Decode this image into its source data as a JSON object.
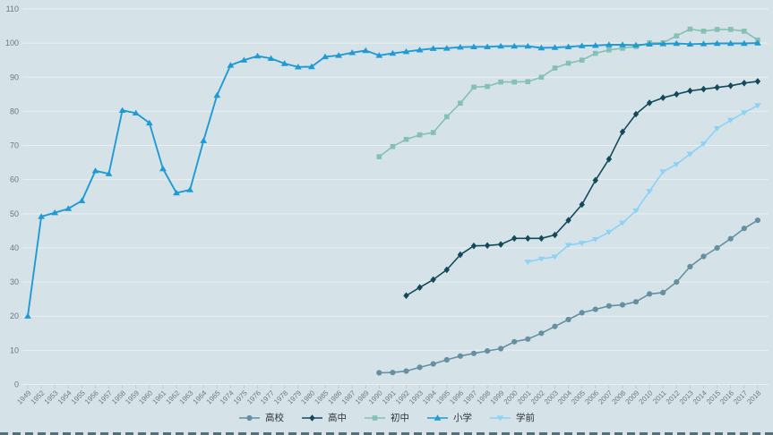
{
  "chart_data": {
    "type": "line",
    "title": "",
    "xlabel": "",
    "ylabel": "",
    "ylim": [
      0,
      110
    ],
    "y_tick_step": 10,
    "y_tick_labels": [
      "0",
      "10",
      "20",
      "30",
      "40",
      "50",
      "60",
      "70",
      "80",
      "90",
      "100",
      "110"
    ],
    "grid": true,
    "legend_position": "bottom-center",
    "background_color": "#d5e3e9",
    "gridline_color": "#e9f0f3",
    "tick_color": "#b9cbd3",
    "axis_label_color": "#6b7880",
    "legend_text_color": "#2f3337",
    "categories": [
      "1949",
      "1952",
      "1953",
      "1954",
      "1955",
      "1956",
      "1957",
      "1958",
      "1959",
      "1960",
      "1961",
      "1962",
      "1963",
      "1964",
      "1965",
      "1974",
      "1975",
      "1976",
      "1977",
      "1978",
      "1979",
      "1980",
      "1985",
      "1986",
      "1987",
      "1989",
      "1990",
      "1991",
      "1992",
      "1993",
      "1994",
      "1995",
      "1996",
      "1997",
      "1998",
      "1999",
      "2000",
      "2001",
      "2002",
      "2003",
      "2004",
      "2005",
      "2006",
      "2007",
      "2008",
      "2009",
      "2010",
      "2011",
      "2012",
      "2013",
      "2014",
      "2015",
      "2016",
      "2017",
      "2018"
    ],
    "series": [
      {
        "name": "高校",
        "key": "higher-education",
        "color": "#6590a2",
        "marker": "circle",
        "line_width": 1.6,
        "values": [
          null,
          null,
          null,
          null,
          null,
          null,
          null,
          null,
          null,
          null,
          null,
          null,
          null,
          null,
          null,
          null,
          null,
          null,
          null,
          null,
          null,
          null,
          null,
          null,
          null,
          null,
          3.4,
          3.5,
          3.9,
          5,
          6,
          7.2,
          8.3,
          9.1,
          9.8,
          10.5,
          12.5,
          13.3,
          15,
          17,
          19,
          21,
          22,
          23,
          23.3,
          24.2,
          26.5,
          26.9,
          30,
          34.5,
          37.5,
          40,
          42.7,
          45.7,
          48.1
        ]
      },
      {
        "name": "高中",
        "key": "senior-secondary",
        "color": "#124a5c",
        "marker": "diamond",
        "line_width": 1.6,
        "values": [
          null,
          null,
          null,
          null,
          null,
          null,
          null,
          null,
          null,
          null,
          null,
          null,
          null,
          null,
          null,
          null,
          null,
          null,
          null,
          null,
          null,
          null,
          null,
          null,
          null,
          null,
          null,
          null,
          26,
          28.4,
          30.7,
          33.6,
          38,
          40.6,
          40.7,
          41,
          42.8,
          42.8,
          42.8,
          43.8,
          48.1,
          52.7,
          59.8,
          66,
          74,
          79.2,
          82.5,
          84,
          85,
          86,
          86.5,
          87,
          87.5,
          88.3,
          88.8
        ]
      },
      {
        "name": "初中",
        "key": "junior-secondary",
        "color": "#85c0b4",
        "marker": "square",
        "line_width": 1.6,
        "values": [
          null,
          null,
          null,
          null,
          null,
          null,
          null,
          null,
          null,
          null,
          null,
          null,
          null,
          null,
          null,
          null,
          null,
          null,
          null,
          null,
          null,
          null,
          null,
          null,
          null,
          null,
          66.7,
          69.7,
          71.8,
          73.1,
          73.8,
          78.4,
          82.4,
          87.1,
          87.3,
          88.6,
          88.6,
          88.7,
          90,
          92.7,
          94.1,
          95,
          97,
          98,
          98.5,
          99,
          100.1,
          100.1,
          102.1,
          104.1,
          103.5,
          104,
          104,
          103.5,
          100.9
        ]
      },
      {
        "name": "小学",
        "key": "primary",
        "color": "#1f9ad3",
        "marker": "triangle",
        "line_width": 1.9,
        "values": [
          20,
          49.2,
          50.3,
          51.5,
          53.8,
          62.6,
          61.7,
          80.3,
          79.5,
          76.6,
          63.2,
          56.1,
          57,
          71.4,
          84.7,
          93.5,
          95,
          96.2,
          95.5,
          94,
          93,
          93.1,
          96,
          96.4,
          97.2,
          97.8,
          96.4,
          97,
          97.5,
          98,
          98.4,
          98.5,
          98.8,
          98.9,
          98.9,
          99.1,
          99.1,
          99.1,
          98.6,
          98.7,
          98.9,
          99.2,
          99.3,
          99.5,
          99.5,
          99.4,
          99.7,
          99.8,
          99.9,
          99.7,
          99.8,
          99.9,
          99.9,
          99.9,
          100
        ]
      },
      {
        "name": "学前",
        "key": "preschool",
        "color": "#8bd2f4",
        "marker": "triangle-down",
        "line_width": 1.6,
        "values": [
          null,
          null,
          null,
          null,
          null,
          null,
          null,
          null,
          null,
          null,
          null,
          null,
          null,
          null,
          null,
          null,
          null,
          null,
          null,
          null,
          null,
          null,
          null,
          null,
          null,
          null,
          null,
          null,
          null,
          null,
          null,
          null,
          null,
          null,
          null,
          null,
          null,
          35.9,
          36.8,
          37.4,
          40.8,
          41.4,
          42.5,
          44.6,
          47.3,
          50.9,
          56.6,
          62.3,
          64.5,
          67.5,
          70.5,
          75,
          77.4,
          79.6,
          81.7
        ]
      }
    ]
  }
}
